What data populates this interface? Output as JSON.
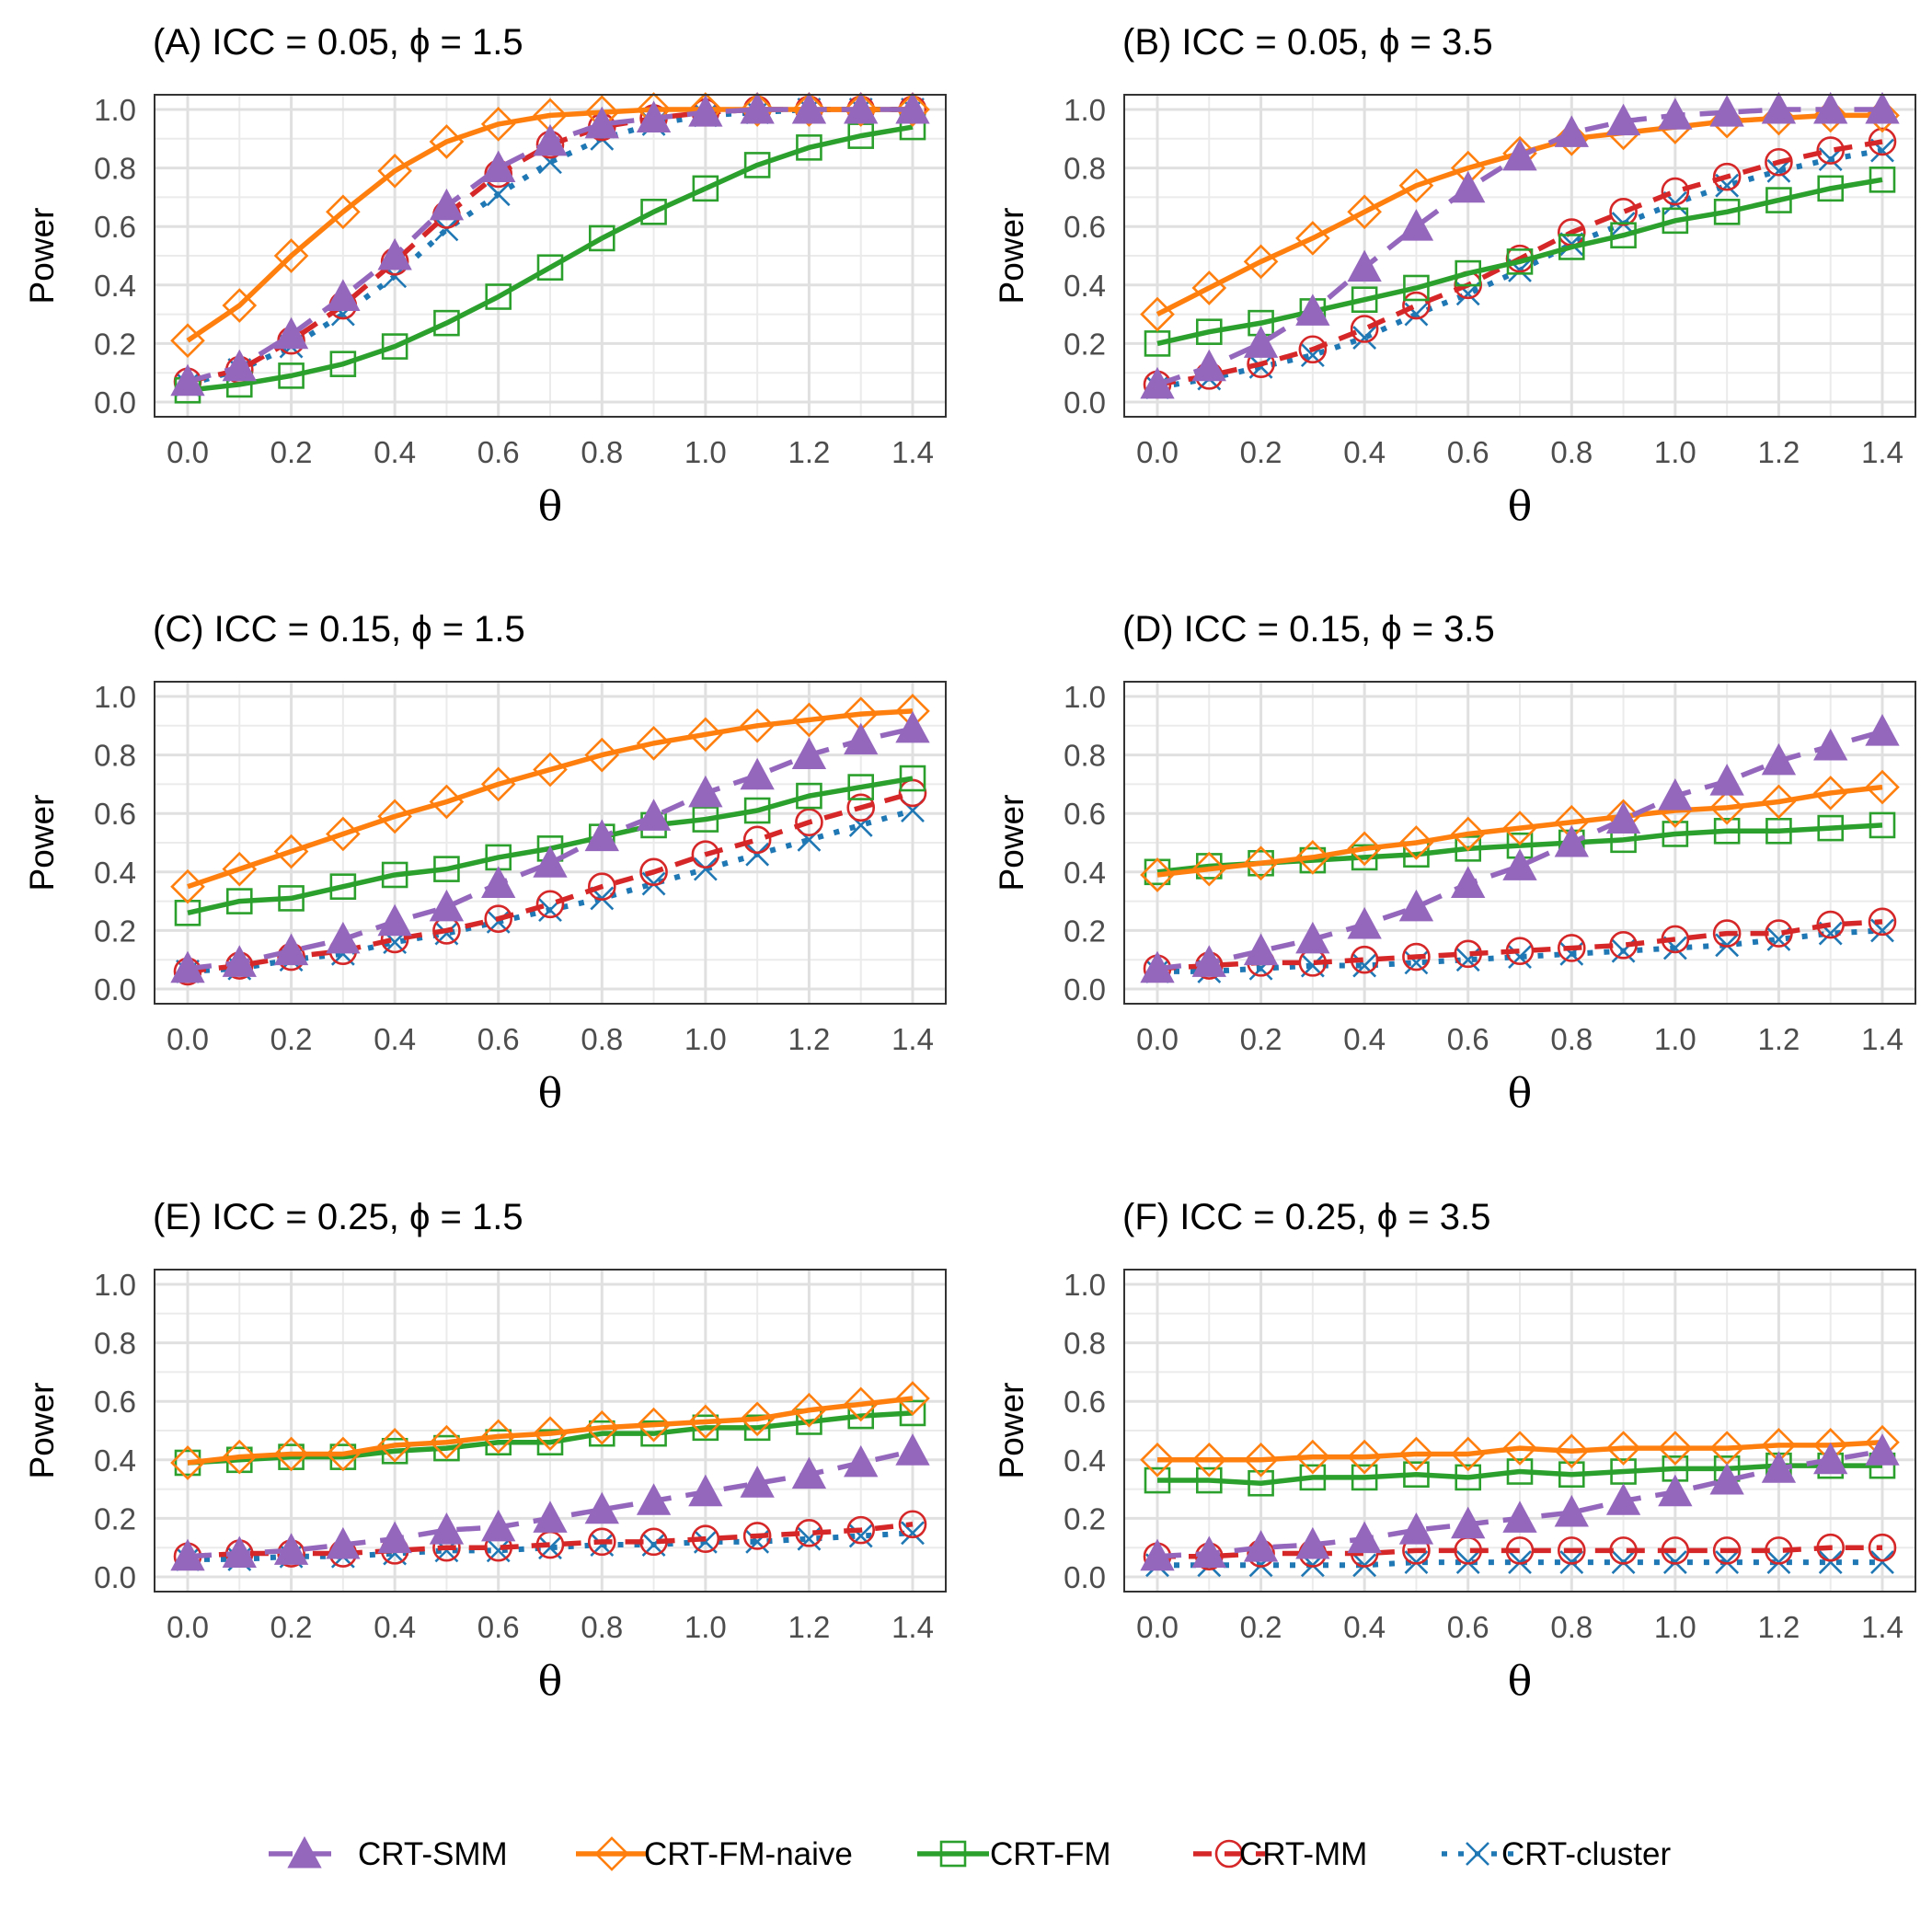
{
  "chart_data": {
    "type": "line",
    "layout": "3x2 grid of panels",
    "x": [
      0.0,
      0.1,
      0.2,
      0.3,
      0.4,
      0.5,
      0.6,
      0.7,
      0.8,
      0.9,
      1.0,
      1.1,
      1.2,
      1.3,
      1.4
    ],
    "xlabel": "θ",
    "ylabel": "Power",
    "xlim": [
      0,
      1.4
    ],
    "ylim": [
      0,
      1
    ],
    "x_ticks": [
      "0.0",
      "0.2",
      "0.4",
      "0.6",
      "0.8",
      "1.0",
      "1.2",
      "1.4"
    ],
    "y_ticks": [
      "0.0",
      "0.2",
      "0.4",
      "0.6",
      "0.8",
      "1.0"
    ],
    "grid": true,
    "legend_position": "bottom",
    "series_styles": [
      {
        "name": "CRT-SMM",
        "color": "#9467bd",
        "marker": "filled-triangle",
        "line": "long-dash"
      },
      {
        "name": "CRT-FM-naive",
        "color": "#ff7f0e",
        "marker": "open-diamond",
        "line": "solid"
      },
      {
        "name": "CRT-FM",
        "color": "#2ca02c",
        "marker": "open-square",
        "line": "solid"
      },
      {
        "name": "CRT-MM",
        "color": "#d62728",
        "marker": "open-circle",
        "line": "dash"
      },
      {
        "name": "CRT-cluster",
        "color": "#1f77b4",
        "marker": "cross",
        "line": "dotted"
      }
    ],
    "panels": [
      {
        "title": "(A) ICC = 0.05, ϕ = 1.5",
        "series": [
          {
            "name": "CRT-SMM",
            "values": [
              0.07,
              0.12,
              0.23,
              0.36,
              0.5,
              0.67,
              0.8,
              0.89,
              0.95,
              0.97,
              0.99,
              1.0,
              1.0,
              1.0,
              1.0
            ]
          },
          {
            "name": "CRT-FM-naive",
            "values": [
              0.21,
              0.33,
              0.5,
              0.65,
              0.79,
              0.89,
              0.95,
              0.98,
              0.99,
              1.0,
              1.0,
              1.0,
              1.0,
              1.0,
              1.0
            ]
          },
          {
            "name": "CRT-FM",
            "values": [
              0.04,
              0.06,
              0.09,
              0.13,
              0.19,
              0.27,
              0.36,
              0.46,
              0.56,
              0.65,
              0.73,
              0.81,
              0.87,
              0.91,
              0.94
            ]
          },
          {
            "name": "CRT-MM",
            "values": [
              0.07,
              0.11,
              0.21,
              0.33,
              0.48,
              0.64,
              0.78,
              0.88,
              0.94,
              0.97,
              0.99,
              1.0,
              1.0,
              1.0,
              1.0
            ]
          },
          {
            "name": "CRT-cluster",
            "values": [
              0.06,
              0.11,
              0.19,
              0.3,
              0.43,
              0.59,
              0.71,
              0.82,
              0.9,
              0.95,
              0.98,
              0.99,
              1.0,
              1.0,
              1.0
            ]
          }
        ]
      },
      {
        "title": "(B) ICC = 0.05, ϕ = 3.5",
        "series": [
          {
            "name": "CRT-SMM",
            "values": [
              0.06,
              0.12,
              0.2,
              0.31,
              0.46,
              0.6,
              0.73,
              0.84,
              0.92,
              0.96,
              0.98,
              0.99,
              1.0,
              1.0,
              1.0
            ]
          },
          {
            "name": "CRT-FM-naive",
            "values": [
              0.3,
              0.39,
              0.48,
              0.56,
              0.65,
              0.74,
              0.8,
              0.85,
              0.9,
              0.92,
              0.94,
              0.96,
              0.97,
              0.98,
              0.98
            ]
          },
          {
            "name": "CRT-FM",
            "values": [
              0.2,
              0.24,
              0.27,
              0.31,
              0.35,
              0.39,
              0.44,
              0.48,
              0.53,
              0.57,
              0.62,
              0.65,
              0.69,
              0.73,
              0.76
            ]
          },
          {
            "name": "CRT-MM",
            "values": [
              0.06,
              0.09,
              0.13,
              0.18,
              0.25,
              0.33,
              0.4,
              0.49,
              0.58,
              0.65,
              0.72,
              0.77,
              0.82,
              0.86,
              0.89
            ]
          },
          {
            "name": "CRT-cluster",
            "values": [
              0.05,
              0.08,
              0.12,
              0.16,
              0.22,
              0.3,
              0.37,
              0.45,
              0.54,
              0.61,
              0.68,
              0.74,
              0.79,
              0.83,
              0.86
            ]
          }
        ]
      },
      {
        "title": "(C) ICC = 0.15, ϕ = 1.5",
        "series": [
          {
            "name": "CRT-SMM",
            "values": [
              0.07,
              0.09,
              0.13,
              0.17,
              0.23,
              0.28,
              0.36,
              0.43,
              0.52,
              0.59,
              0.67,
              0.73,
              0.8,
              0.85,
              0.89
            ]
          },
          {
            "name": "CRT-FM-naive",
            "values": [
              0.35,
              0.41,
              0.47,
              0.53,
              0.59,
              0.64,
              0.7,
              0.75,
              0.8,
              0.84,
              0.87,
              0.9,
              0.92,
              0.94,
              0.95
            ]
          },
          {
            "name": "CRT-FM",
            "values": [
              0.26,
              0.3,
              0.31,
              0.35,
              0.39,
              0.41,
              0.45,
              0.48,
              0.52,
              0.56,
              0.58,
              0.61,
              0.66,
              0.69,
              0.72
            ]
          },
          {
            "name": "CRT-MM",
            "values": [
              0.06,
              0.08,
              0.11,
              0.13,
              0.17,
              0.2,
              0.24,
              0.29,
              0.35,
              0.4,
              0.46,
              0.51,
              0.57,
              0.62,
              0.67
            ]
          },
          {
            "name": "CRT-cluster",
            "values": [
              0.06,
              0.07,
              0.1,
              0.12,
              0.16,
              0.19,
              0.23,
              0.27,
              0.31,
              0.36,
              0.41,
              0.46,
              0.51,
              0.56,
              0.61
            ]
          }
        ]
      },
      {
        "title": "(D) ICC = 0.15, ϕ = 3.5",
        "series": [
          {
            "name": "CRT-SMM",
            "values": [
              0.07,
              0.09,
              0.13,
              0.17,
              0.22,
              0.28,
              0.36,
              0.42,
              0.5,
              0.58,
              0.66,
              0.71,
              0.78,
              0.83,
              0.88
            ]
          },
          {
            "name": "CRT-FM-naive",
            "values": [
              0.39,
              0.41,
              0.43,
              0.45,
              0.48,
              0.5,
              0.53,
              0.55,
              0.57,
              0.59,
              0.61,
              0.62,
              0.64,
              0.67,
              0.69
            ]
          },
          {
            "name": "CRT-FM",
            "values": [
              0.4,
              0.42,
              0.43,
              0.44,
              0.45,
              0.46,
              0.48,
              0.49,
              0.5,
              0.51,
              0.53,
              0.54,
              0.54,
              0.55,
              0.56
            ]
          },
          {
            "name": "CRT-MM",
            "values": [
              0.07,
              0.08,
              0.09,
              0.09,
              0.1,
              0.11,
              0.12,
              0.13,
              0.14,
              0.15,
              0.17,
              0.19,
              0.19,
              0.22,
              0.23
            ]
          },
          {
            "name": "CRT-cluster",
            "values": [
              0.06,
              0.06,
              0.07,
              0.08,
              0.08,
              0.09,
              0.1,
              0.11,
              0.12,
              0.13,
              0.14,
              0.15,
              0.17,
              0.19,
              0.2
            ]
          }
        ]
      },
      {
        "title": "(E) ICC = 0.25, ϕ = 1.5",
        "series": [
          {
            "name": "CRT-SMM",
            "values": [
              0.07,
              0.08,
              0.09,
              0.11,
              0.13,
              0.16,
              0.17,
              0.2,
              0.23,
              0.26,
              0.29,
              0.32,
              0.35,
              0.39,
              0.43
            ]
          },
          {
            "name": "CRT-FM-naive",
            "values": [
              0.39,
              0.41,
              0.42,
              0.42,
              0.45,
              0.46,
              0.48,
              0.49,
              0.51,
              0.52,
              0.53,
              0.54,
              0.57,
              0.59,
              0.61
            ]
          },
          {
            "name": "CRT-FM",
            "values": [
              0.39,
              0.4,
              0.41,
              0.41,
              0.43,
              0.44,
              0.46,
              0.46,
              0.49,
              0.49,
              0.51,
              0.51,
              0.53,
              0.55,
              0.56
            ]
          },
          {
            "name": "CRT-MM",
            "values": [
              0.07,
              0.08,
              0.08,
              0.08,
              0.09,
              0.1,
              0.1,
              0.11,
              0.12,
              0.12,
              0.13,
              0.14,
              0.15,
              0.16,
              0.18
            ]
          },
          {
            "name": "CRT-cluster",
            "values": [
              0.06,
              0.06,
              0.07,
              0.07,
              0.08,
              0.09,
              0.09,
              0.1,
              0.11,
              0.11,
              0.12,
              0.12,
              0.13,
              0.14,
              0.15
            ]
          }
        ]
      },
      {
        "title": "(F) ICC = 0.25, ϕ = 3.5",
        "series": [
          {
            "name": "CRT-SMM",
            "values": [
              0.07,
              0.08,
              0.1,
              0.11,
              0.13,
              0.16,
              0.18,
              0.2,
              0.22,
              0.26,
              0.29,
              0.33,
              0.37,
              0.4,
              0.43
            ]
          },
          {
            "name": "CRT-FM-naive",
            "values": [
              0.4,
              0.4,
              0.4,
              0.41,
              0.41,
              0.42,
              0.42,
              0.44,
              0.43,
              0.44,
              0.44,
              0.44,
              0.45,
              0.45,
              0.46
            ]
          },
          {
            "name": "CRT-FM",
            "values": [
              0.33,
              0.33,
              0.32,
              0.34,
              0.34,
              0.35,
              0.34,
              0.36,
              0.35,
              0.36,
              0.37,
              0.37,
              0.38,
              0.38,
              0.38
            ]
          },
          {
            "name": "CRT-MM",
            "values": [
              0.07,
              0.07,
              0.08,
              0.08,
              0.08,
              0.09,
              0.09,
              0.09,
              0.09,
              0.09,
              0.09,
              0.09,
              0.09,
              0.1,
              0.1
            ]
          },
          {
            "name": "CRT-cluster",
            "values": [
              0.04,
              0.04,
              0.04,
              0.04,
              0.04,
              0.05,
              0.05,
              0.05,
              0.05,
              0.05,
              0.05,
              0.05,
              0.05,
              0.05,
              0.05
            ]
          }
        ]
      }
    ]
  }
}
